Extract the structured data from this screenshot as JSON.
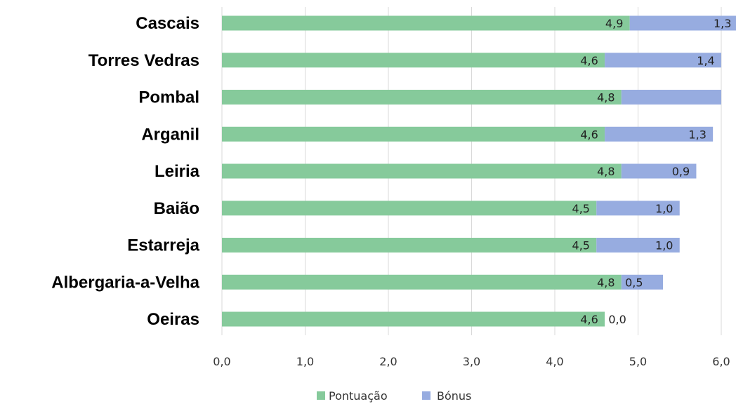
{
  "chart_data": {
    "type": "bar",
    "orientation": "horizontal",
    "stacked": true,
    "categories": [
      "Cascais",
      "Torres Vedras",
      "Pombal",
      "Arganil",
      "Leiria",
      "Baião",
      "Estarreja",
      "Albergaria-a-Velha",
      "Oeiras"
    ],
    "series": [
      {
        "name": "Pontuação",
        "color": "#86CA9B",
        "values": [
          4.9,
          4.6,
          4.8,
          4.6,
          4.8,
          4.5,
          4.5,
          4.8,
          4.6
        ],
        "labels": [
          "4,9",
          "4,6",
          "4,8",
          "4,6",
          "4,8",
          "4,5",
          "4,5",
          "4,8",
          "4,6"
        ]
      },
      {
        "name": "Bónus",
        "color": "#97ACE0",
        "values": [
          1.3,
          1.4,
          1.2,
          1.3,
          0.9,
          1.0,
          1.0,
          0.5,
          0.0
        ],
        "labels": [
          "1,3",
          "1,4",
          "",
          "1,3",
          "0,9",
          "1,0",
          "1,0",
          "0,5",
          "0,0"
        ]
      }
    ],
    "xlim": [
      0,
      6
    ],
    "xticks": [
      "0,0",
      "1,0",
      "2,0",
      "3,0",
      "4,0",
      "5,0",
      "6,0"
    ],
    "title": "",
    "xlabel": "",
    "ylabel": "",
    "grid": "vertical",
    "legend": "bottom-center"
  }
}
